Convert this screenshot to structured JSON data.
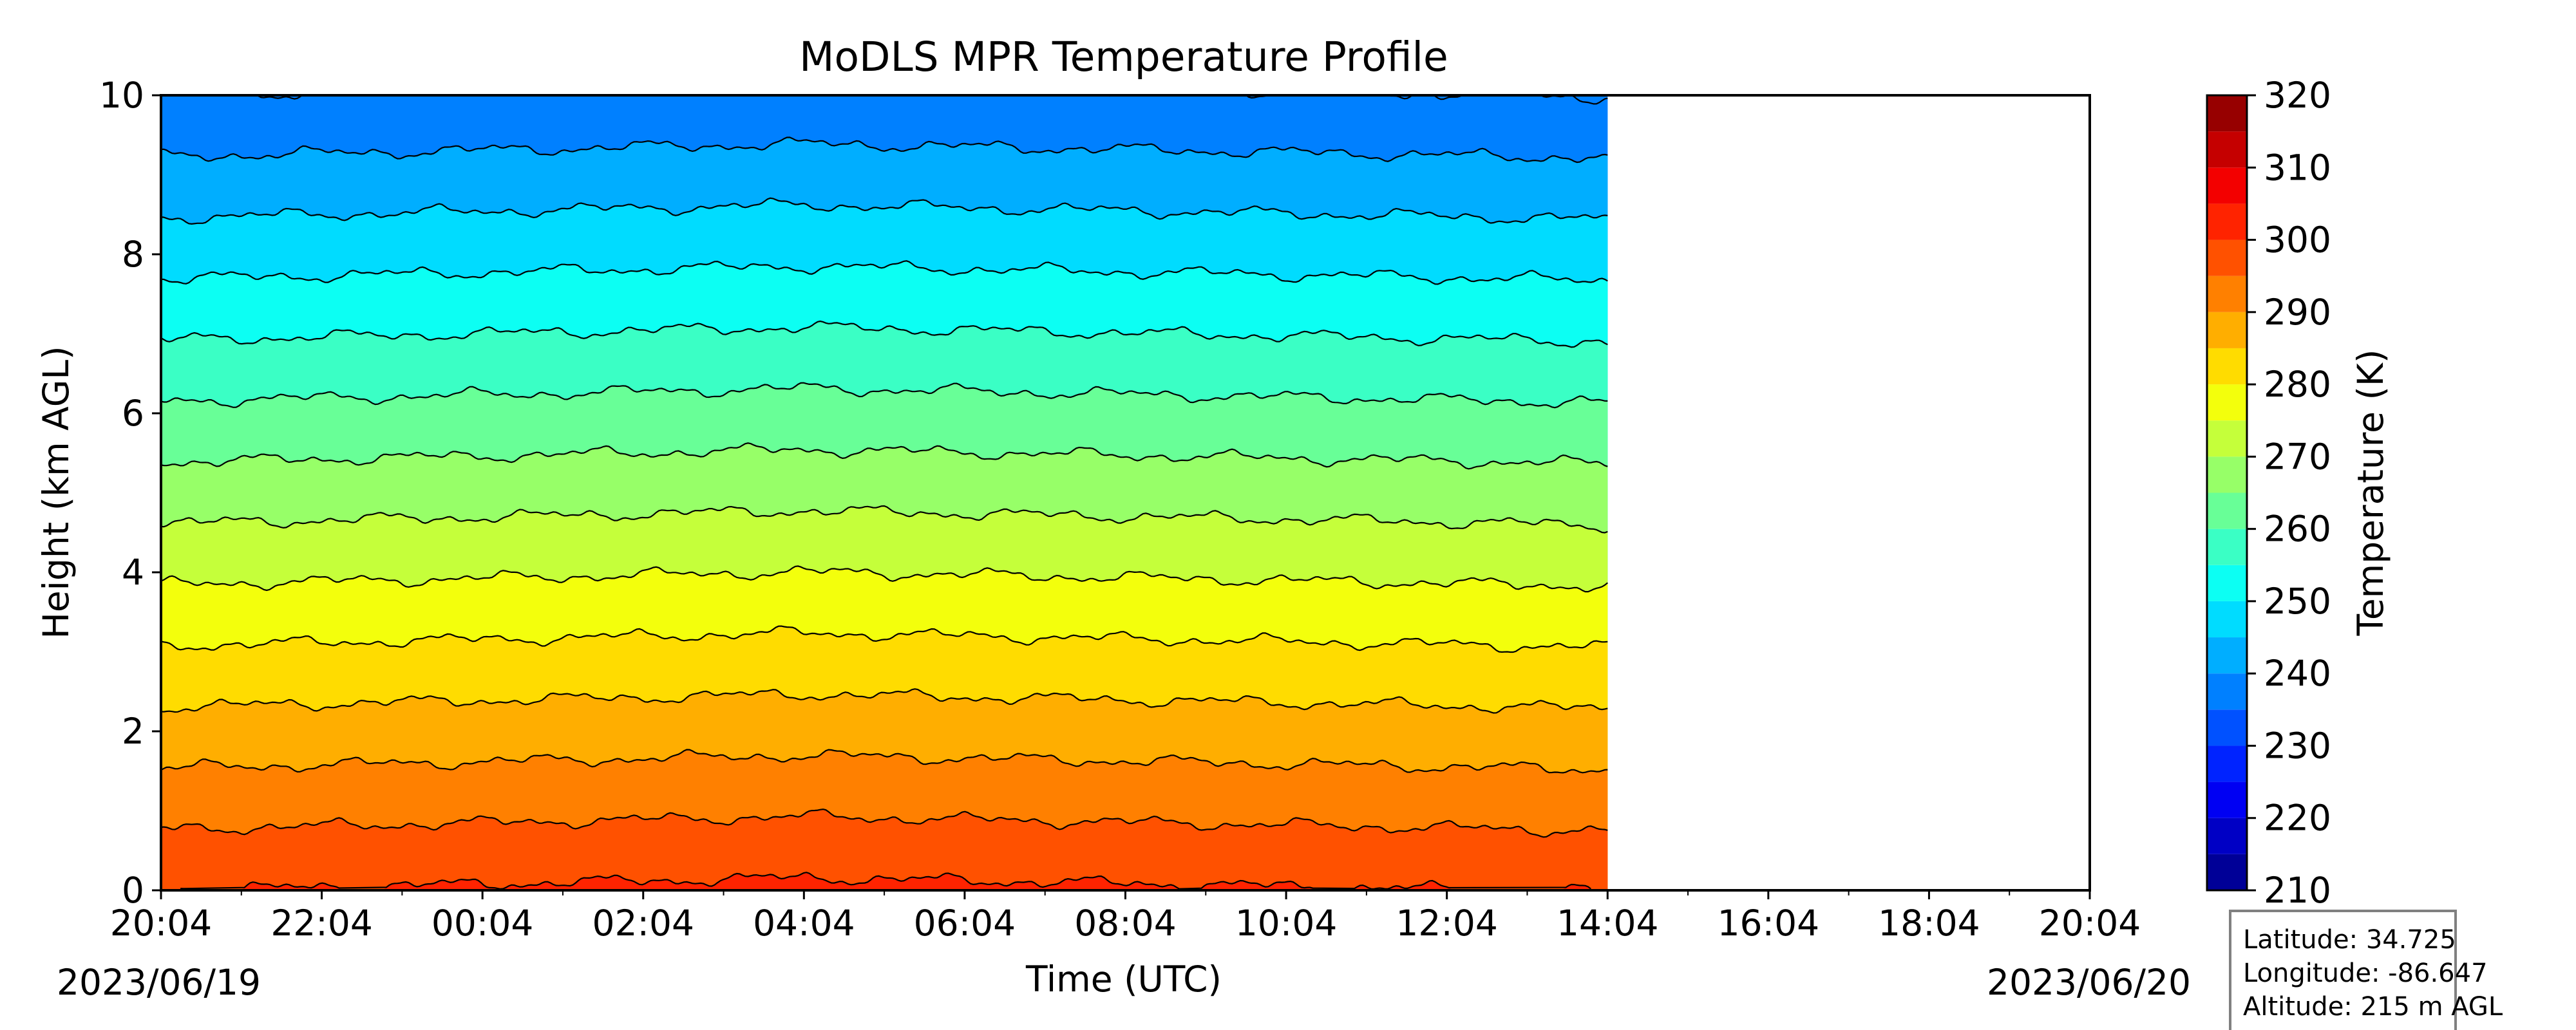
{
  "chart_data": {
    "type": "heatmap",
    "subtype": "filled-contour",
    "title": "MoDLS MPR Temperature Profile",
    "xlabel": "Time (UTC)",
    "ylabel": "Height (km AGL)",
    "colorbar_label": "Temperature (K)",
    "colormap": "jet",
    "xlim": [
      "2023-06-19 20:04",
      "2023-06-20 20:04"
    ],
    "x_tick_labels": [
      "20:04",
      "22:04",
      "00:04",
      "02:04",
      "04:04",
      "06:04",
      "08:04",
      "10:04",
      "12:04",
      "14:04",
      "16:04",
      "18:04",
      "20:04"
    ],
    "x_tick_hours": [
      0,
      2,
      4,
      6,
      8,
      10,
      12,
      14,
      16,
      18,
      20,
      22,
      24
    ],
    "x_minor_tick_hours": [
      1,
      3,
      5,
      7,
      9,
      11,
      13,
      15,
      17,
      19,
      21,
      23
    ],
    "start_date_label": "2023/06/19",
    "end_date_label": "2023/06/20",
    "data_end_time": "2023-06-20 14:04",
    "ylim": [
      0,
      10
    ],
    "y_ticks": [
      0,
      2,
      4,
      6,
      8,
      10
    ],
    "colorbar_range": [
      210,
      320
    ],
    "colorbar_ticks": [
      210,
      220,
      230,
      240,
      250,
      260,
      270,
      280,
      290,
      300,
      310,
      320
    ],
    "contour_step": 5,
    "surface_temperature": 300,
    "lapse_rate_k_per_km": 6.5,
    "legend_position": "none",
    "grid": false
  },
  "info": {
    "latitude": "Latitude: 34.725",
    "longitude": "Longitude: -86.647",
    "altitude": "Altitude: 215 m AGL"
  },
  "colors": {
    "frame": "#000000",
    "contour_line": "#000000",
    "background": "#ffffff",
    "info_box_border": "#808080"
  }
}
